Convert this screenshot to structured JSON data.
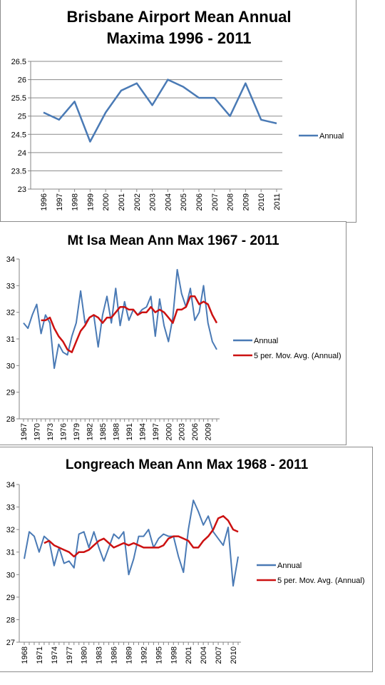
{
  "chart_data": [
    {
      "type": "line",
      "title": [
        "Brisbane Airport Mean Annual",
        "Maxima 1996 - 2011"
      ],
      "xlabel": "",
      "ylabel": "",
      "ylim": [
        23,
        26.5
      ],
      "yticks": [
        "23",
        "23.5",
        "24",
        "24.5",
        "25",
        "25.5",
        "26",
        "26.5"
      ],
      "x": [
        1996,
        1997,
        1998,
        1999,
        2000,
        2001,
        2002,
        2003,
        2004,
        2005,
        2006,
        2007,
        2008,
        2009,
        2010,
        2011
      ],
      "xticks": [
        "1996",
        "1997",
        "1998",
        "1999",
        "2000",
        "2001",
        "2002",
        "2003",
        "2004",
        "2005",
        "2006",
        "2007",
        "2008",
        "2009",
        "2010",
        "2011"
      ],
      "grid": true,
      "legend_position": "right",
      "series": [
        {
          "name": "Annual",
          "color": "#4a7ab5",
          "values": [
            25.1,
            24.9,
            25.4,
            24.3,
            25.1,
            25.7,
            25.9,
            25.3,
            26.0,
            25.8,
            25.5,
            25.5,
            25.0,
            25.9,
            24.9,
            24.8
          ]
        }
      ]
    },
    {
      "type": "line",
      "title": [
        "Mt Isa Mean Ann Max 1967 - 2011"
      ],
      "xlabel": "",
      "ylabel": "",
      "ylim": [
        28,
        34
      ],
      "yticks": [
        "28",
        "29",
        "30",
        "31",
        "32",
        "33",
        "34"
      ],
      "x": [
        1967,
        1968,
        1969,
        1970,
        1971,
        1972,
        1973,
        1974,
        1975,
        1976,
        1977,
        1978,
        1979,
        1980,
        1981,
        1982,
        1983,
        1984,
        1985,
        1986,
        1987,
        1988,
        1989,
        1990,
        1991,
        1992,
        1993,
        1994,
        1995,
        1996,
        1997,
        1998,
        1999,
        2000,
        2001,
        2002,
        2003,
        2004,
        2005,
        2006,
        2007,
        2008,
        2009,
        2010,
        2011
      ],
      "xticks": [
        "1967",
        "1970",
        "1973",
        "1976",
        "1979",
        "1982",
        "1985",
        "1988",
        "1991",
        "1994",
        "1997",
        "2000",
        "2003",
        "2006",
        "2009"
      ],
      "grid": false,
      "legend_position": "right",
      "series": [
        {
          "name": "Annual",
          "color": "#4a7ab5",
          "values": [
            31.6,
            31.4,
            31.9,
            32.3,
            31.2,
            31.9,
            31.6,
            29.9,
            30.8,
            30.5,
            30.4,
            31.1,
            31.6,
            32.8,
            31.6,
            31.8,
            31.9,
            30.7,
            31.9,
            32.6,
            31.6,
            32.9,
            31.5,
            32.4,
            31.7,
            32.1,
            31.9,
            32.1,
            32.2,
            32.6,
            31.1,
            32.5,
            31.5,
            30.9,
            31.8,
            33.6,
            32.7,
            32.2,
            32.9,
            31.7,
            32.0,
            33.0,
            31.6,
            30.9,
            30.6
          ]
        },
        {
          "name": "5 per. Mov. Avg. (Annual)",
          "color": "#cc1111",
          "values": [
            null,
            null,
            null,
            null,
            31.7,
            31.7,
            31.8,
            31.4,
            31.1,
            30.9,
            30.6,
            30.5,
            30.9,
            31.3,
            31.5,
            31.8,
            31.9,
            31.8,
            31.6,
            31.8,
            31.8,
            32.0,
            32.2,
            32.2,
            32.1,
            32.1,
            31.9,
            32.0,
            32.0,
            32.2,
            32.0,
            32.1,
            32.0,
            31.8,
            31.6,
            32.1,
            32.1,
            32.2,
            32.6,
            32.6,
            32.3,
            32.4,
            32.3,
            31.9,
            31.6
          ]
        }
      ]
    },
    {
      "type": "line",
      "title": [
        "Longreach Mean Ann Max 1968 - 2011"
      ],
      "xlabel": "",
      "ylabel": "",
      "ylim": [
        27,
        34
      ],
      "yticks": [
        "27",
        "28",
        "29",
        "30",
        "31",
        "32",
        "33",
        "34"
      ],
      "x": [
        1968,
        1969,
        1970,
        1971,
        1972,
        1973,
        1974,
        1975,
        1976,
        1977,
        1978,
        1979,
        1980,
        1981,
        1982,
        1983,
        1984,
        1985,
        1986,
        1987,
        1988,
        1989,
        1990,
        1991,
        1992,
        1993,
        1994,
        1995,
        1996,
        1997,
        1998,
        1999,
        2000,
        2001,
        2002,
        2003,
        2004,
        2005,
        2006,
        2007,
        2008,
        2009,
        2010,
        2011
      ],
      "xticks": [
        "1968",
        "1971",
        "1974",
        "1977",
        "1980",
        "1983",
        "1986",
        "1989",
        "1992",
        "1995",
        "1998",
        "2001",
        "2004",
        "2007",
        "2010"
      ],
      "grid": false,
      "legend_position": "right",
      "series": [
        {
          "name": "Annual",
          "color": "#4a7ab5",
          "values": [
            30.7,
            31.9,
            31.7,
            31.0,
            31.7,
            31.5,
            30.4,
            31.2,
            30.5,
            30.6,
            30.3,
            31.8,
            31.9,
            31.2,
            31.9,
            31.2,
            30.6,
            31.2,
            31.8,
            31.6,
            31.9,
            30.0,
            30.7,
            31.7,
            31.7,
            32.0,
            31.2,
            31.6,
            31.8,
            31.7,
            31.7,
            30.8,
            30.1,
            32.0,
            33.3,
            32.8,
            32.2,
            32.6,
            31.9,
            31.6,
            31.3,
            32.1,
            29.5,
            30.8
          ]
        },
        {
          "name": "5 per. Mov. Avg. (Annual)",
          "color": "#cc1111",
          "values": [
            null,
            null,
            null,
            null,
            31.4,
            31.5,
            31.3,
            31.2,
            31.1,
            31.0,
            30.8,
            31.0,
            31.0,
            31.1,
            31.3,
            31.5,
            31.6,
            31.4,
            31.2,
            31.3,
            31.4,
            31.3,
            31.4,
            31.3,
            31.2,
            31.2,
            31.2,
            31.2,
            31.3,
            31.6,
            31.7,
            31.7,
            31.6,
            31.5,
            31.2,
            31.2,
            31.5,
            31.7,
            32.0,
            32.5,
            32.6,
            32.4,
            32.0,
            31.9
          ]
        }
      ]
    }
  ]
}
